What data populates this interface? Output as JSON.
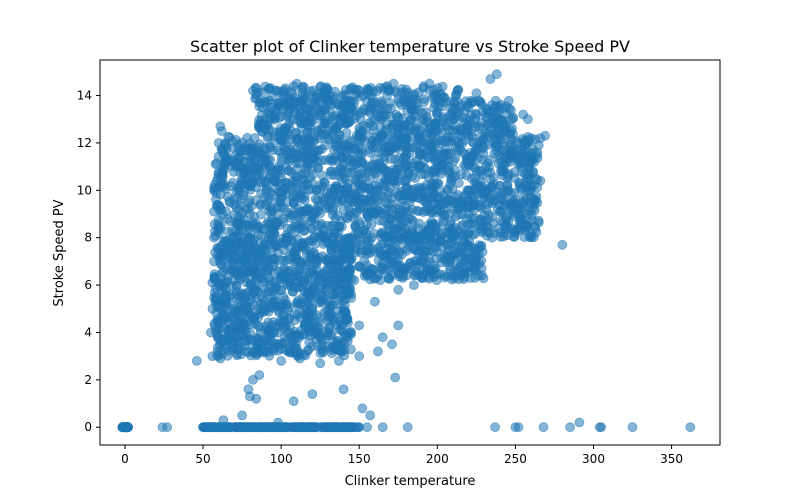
{
  "chart_data": {
    "type": "scatter",
    "title": "Scatter plot of Clinker temperature vs Stroke Speed PV",
    "xlabel": "Clinker temperature",
    "ylabel": "Stroke Speed PV",
    "xlim": [
      -16,
      381
    ],
    "ylim": [
      -0.75,
      15.5
    ],
    "xticks": [
      0,
      50,
      100,
      150,
      200,
      250,
      300,
      350
    ],
    "yticks": [
      0,
      2,
      4,
      6,
      8,
      10,
      12,
      14
    ],
    "grid": false,
    "legend": "none",
    "marker_color": "#1f77b4",
    "marker_alpha": 0.55,
    "series": [
      {
        "points": [
          [
            0,
            0
          ],
          [
            0,
            0
          ],
          [
            0,
            0
          ],
          [
            24,
            0
          ],
          [
            27,
            0
          ],
          [
            50,
            0
          ],
          [
            53,
            0
          ],
          [
            57,
            0
          ],
          [
            60,
            0
          ],
          [
            63,
            0
          ],
          [
            67,
            0
          ],
          [
            70,
            0
          ],
          [
            74,
            0
          ],
          [
            78,
            0
          ],
          [
            82,
            0
          ],
          [
            86,
            0
          ],
          [
            90,
            0
          ],
          [
            94,
            0
          ],
          [
            98,
            0
          ],
          [
            102,
            0
          ],
          [
            106,
            0
          ],
          [
            110,
            0
          ],
          [
            114,
            0
          ],
          [
            118,
            0
          ],
          [
            122,
            0
          ],
          [
            126,
            0
          ],
          [
            130,
            0
          ],
          [
            134,
            0
          ],
          [
            138,
            0
          ],
          [
            142,
            0
          ],
          [
            146,
            0
          ],
          [
            150,
            0
          ],
          [
            155,
            0
          ],
          [
            165,
            0
          ],
          [
            181,
            0
          ],
          [
            237,
            0
          ],
          [
            250,
            0
          ],
          [
            252,
            0
          ],
          [
            268,
            0
          ],
          [
            285,
            0
          ],
          [
            291,
            0.2
          ],
          [
            304,
            0
          ],
          [
            305,
            0
          ],
          [
            325,
            0
          ],
          [
            362,
            0
          ],
          [
            152,
            0.8
          ],
          [
            157,
            0.5
          ],
          [
            63,
            0.3
          ],
          [
            75,
            0.5
          ],
          [
            98,
            0.2
          ],
          [
            79,
            1.6
          ],
          [
            80,
            1.3
          ],
          [
            84,
            1.2
          ],
          [
            82,
            2.0
          ],
          [
            86,
            2.2
          ],
          [
            108,
            1.1
          ],
          [
            120,
            1.4
          ],
          [
            140,
            1.6
          ],
          [
            173,
            2.1
          ],
          [
            46,
            2.8
          ],
          [
            56,
            3.0
          ],
          [
            61,
            2.9
          ],
          [
            72,
            3.1
          ],
          [
            88,
            3.2
          ],
          [
            100,
            2.8
          ],
          [
            112,
            2.9
          ],
          [
            125,
            2.7
          ],
          [
            137,
            2.8
          ],
          [
            150,
            3.0
          ],
          [
            162,
            3.2
          ],
          [
            55,
            4.0
          ],
          [
            60,
            4.2
          ],
          [
            70,
            3.8
          ],
          [
            90,
            4.1
          ],
          [
            110,
            3.9
          ],
          [
            130,
            4.0
          ],
          [
            150,
            4.3
          ],
          [
            165,
            3.8
          ],
          [
            175,
            4.3
          ],
          [
            171,
            3.5
          ],
          [
            56,
            5.0
          ],
          [
            60,
            5.2
          ],
          [
            80,
            4.8
          ],
          [
            100,
            5.1
          ],
          [
            120,
            5.0
          ],
          [
            140,
            4.9
          ],
          [
            160,
            5.3
          ],
          [
            56,
            6.1
          ],
          [
            62,
            6.0
          ],
          [
            75,
            6.5
          ],
          [
            95,
            5.8
          ],
          [
            115,
            6.2
          ],
          [
            135,
            6.0
          ],
          [
            155,
            6.4
          ],
          [
            175,
            5.8
          ],
          [
            185,
            6.0
          ],
          [
            190,
            6.3
          ],
          [
            57,
            7.0
          ],
          [
            70,
            7.2
          ],
          [
            90,
            6.9
          ],
          [
            110,
            7.1
          ],
          [
            130,
            7.0
          ],
          [
            150,
            6.8
          ],
          [
            170,
            7.2
          ],
          [
            190,
            7.0
          ],
          [
            205,
            7.1
          ],
          [
            215,
            7.2
          ],
          [
            57,
            8.0
          ],
          [
            75,
            8.3
          ],
          [
            95,
            8.1
          ],
          [
            115,
            7.8
          ],
          [
            135,
            8.2
          ],
          [
            155,
            8.0
          ],
          [
            175,
            8.4
          ],
          [
            195,
            8.1
          ],
          [
            215,
            8.2
          ],
          [
            235,
            8.0
          ],
          [
            245,
            8.1
          ],
          [
            250,
            8.2
          ],
          [
            253,
            8.4
          ],
          [
            280,
            7.7
          ],
          [
            57,
            9.1
          ],
          [
            80,
            9.0
          ],
          [
            100,
            9.3
          ],
          [
            120,
            8.9
          ],
          [
            140,
            9.2
          ],
          [
            160,
            9.0
          ],
          [
            180,
            9.1
          ],
          [
            200,
            9.2
          ],
          [
            220,
            9.0
          ],
          [
            240,
            9.1
          ],
          [
            250,
            8.9
          ],
          [
            258,
            9.3
          ],
          [
            263,
            9.6
          ],
          [
            57,
            10.1
          ],
          [
            80,
            10.2
          ],
          [
            100,
            9.9
          ],
          [
            120,
            10.3
          ],
          [
            140,
            10.0
          ],
          [
            160,
            10.2
          ],
          [
            180,
            10.1
          ],
          [
            200,
            10.3
          ],
          [
            220,
            10.0
          ],
          [
            240,
            10.2
          ],
          [
            260,
            10.2
          ],
          [
            263,
            10.5
          ],
          [
            266,
            10.4
          ],
          [
            58,
            11.1
          ],
          [
            80,
            11.0
          ],
          [
            100,
            11.2
          ],
          [
            120,
            10.9
          ],
          [
            140,
            11.1
          ],
          [
            160,
            11.3
          ],
          [
            180,
            11.0
          ],
          [
            200,
            11.2
          ],
          [
            220,
            11.1
          ],
          [
            240,
            11.3
          ],
          [
            262,
            11.2
          ],
          [
            264,
            11.6
          ],
          [
            265,
            11.9
          ],
          [
            60,
            12.0
          ],
          [
            80,
            11.8
          ],
          [
            100,
            12.1
          ],
          [
            120,
            12.2
          ],
          [
            140,
            11.9
          ],
          [
            160,
            12.0
          ],
          [
            180,
            12.2
          ],
          [
            200,
            12.1
          ],
          [
            220,
            12.3
          ],
          [
            240,
            12.2
          ],
          [
            260,
            12.2
          ],
          [
            266,
            12.2
          ],
          [
            269,
            12.3
          ],
          [
            61,
            12.7
          ],
          [
            62,
            12.5
          ],
          [
            88,
            13.5
          ],
          [
            100,
            13.6
          ],
          [
            120,
            13.3
          ],
          [
            140,
            13.5
          ],
          [
            160,
            13.4
          ],
          [
            180,
            13.6
          ],
          [
            200,
            13.3
          ],
          [
            220,
            13.5
          ],
          [
            240,
            13.4
          ],
          [
            255,
            13.2
          ],
          [
            258,
            13.0
          ],
          [
            82,
            14.2
          ],
          [
            84,
            14.3
          ],
          [
            108,
            14.4
          ],
          [
            110,
            14.5
          ],
          [
            128,
            14.3
          ],
          [
            150,
            14.2
          ],
          [
            168,
            14.4
          ],
          [
            172,
            14.5
          ],
          [
            195,
            14.5
          ],
          [
            225,
            14.1
          ],
          [
            234,
            14.7
          ],
          [
            238,
            14.9
          ]
        ],
        "dense_regions": [
          {
            "x": [
              57,
              265
            ],
            "y": [
              8.0,
              12.3
            ],
            "n": 1500
          },
          {
            "x": [
              57,
              145
            ],
            "y": [
              3.0,
              8.0
            ],
            "n": 900
          },
          {
            "x": [
              140,
              230
            ],
            "y": [
              6.2,
              8.0
            ],
            "n": 300
          },
          {
            "x": [
              85,
              250
            ],
            "y": [
              12.3,
              13.8
            ],
            "n": 450
          },
          {
            "x": [
              80,
              215
            ],
            "y": [
              13.8,
              14.4
            ],
            "n": 120
          },
          {
            "x": [
              50,
              150
            ],
            "y": [
              0,
              0
            ],
            "n": 250
          },
          {
            "x": [
              -2,
              2
            ],
            "y": [
              0,
              0
            ],
            "n": 40
          }
        ]
      }
    ]
  }
}
